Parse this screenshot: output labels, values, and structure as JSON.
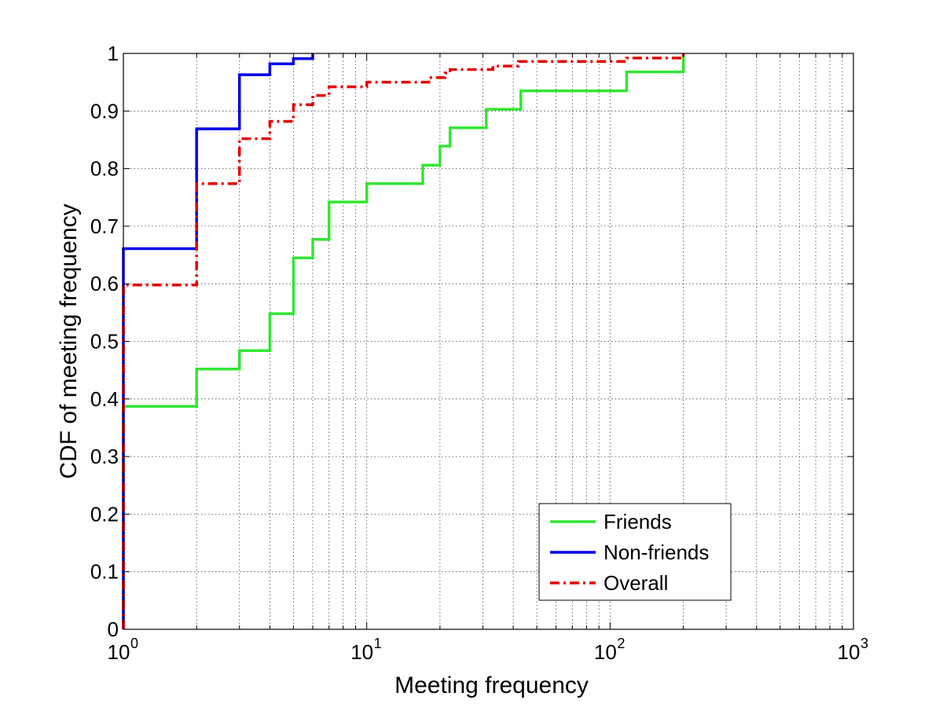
{
  "chart_data": {
    "type": "line",
    "xlabel": "Meeting frequency",
    "ylabel": "CDF of meeting frequency",
    "xscale": "log",
    "xlim": [
      1,
      1000
    ],
    "ylim": [
      0,
      1
    ],
    "grid": true,
    "legend_position": "bottom-right",
    "x_ticks": [
      {
        "base": "10",
        "exp": "0"
      },
      {
        "base": "10",
        "exp": "1"
      },
      {
        "base": "10",
        "exp": "2"
      },
      {
        "base": "10",
        "exp": "3"
      }
    ],
    "y_ticks": [
      "0",
      "0.1",
      "0.2",
      "0.3",
      "0.4",
      "0.5",
      "0.6",
      "0.7",
      "0.8",
      "0.9",
      "1"
    ],
    "series": [
      {
        "name": "Friends",
        "color": "#33e633",
        "style": "solid",
        "step": true,
        "points": [
          [
            1,
            0
          ],
          [
            1,
            0.387
          ],
          [
            2,
            0.452
          ],
          [
            3,
            0.484
          ],
          [
            4,
            0.548
          ],
          [
            5,
            0.645
          ],
          [
            6,
            0.677
          ],
          [
            7,
            0.742
          ],
          [
            10,
            0.774
          ],
          [
            17,
            0.806
          ],
          [
            20,
            0.839
          ],
          [
            22,
            0.871
          ],
          [
            31,
            0.903
          ],
          [
            43,
            0.935
          ],
          [
            117,
            0.968
          ],
          [
            200,
            1.0
          ]
        ]
      },
      {
        "name": "Non-friends",
        "color": "#0000e6",
        "style": "solid",
        "step": true,
        "points": [
          [
            1,
            0
          ],
          [
            1,
            0.661
          ],
          [
            2,
            0.869
          ],
          [
            3,
            0.963
          ],
          [
            4,
            0.982
          ],
          [
            5,
            0.991
          ],
          [
            6,
            1.0
          ]
        ]
      },
      {
        "name": "Overall",
        "color": "#e60000",
        "style": "dashdot",
        "step": true,
        "points": [
          [
            1,
            0
          ],
          [
            1,
            0.598
          ],
          [
            2,
            0.774
          ],
          [
            3,
            0.852
          ],
          [
            4,
            0.882
          ],
          [
            5,
            0.911
          ],
          [
            6,
            0.927
          ],
          [
            7,
            0.942
          ],
          [
            10,
            0.95
          ],
          [
            18,
            0.958
          ],
          [
            21,
            0.966
          ],
          [
            22,
            0.972
          ],
          [
            33,
            0.978
          ],
          [
            42,
            0.986
          ],
          [
            117,
            0.992
          ],
          [
            200,
            1.0
          ]
        ]
      }
    ]
  }
}
